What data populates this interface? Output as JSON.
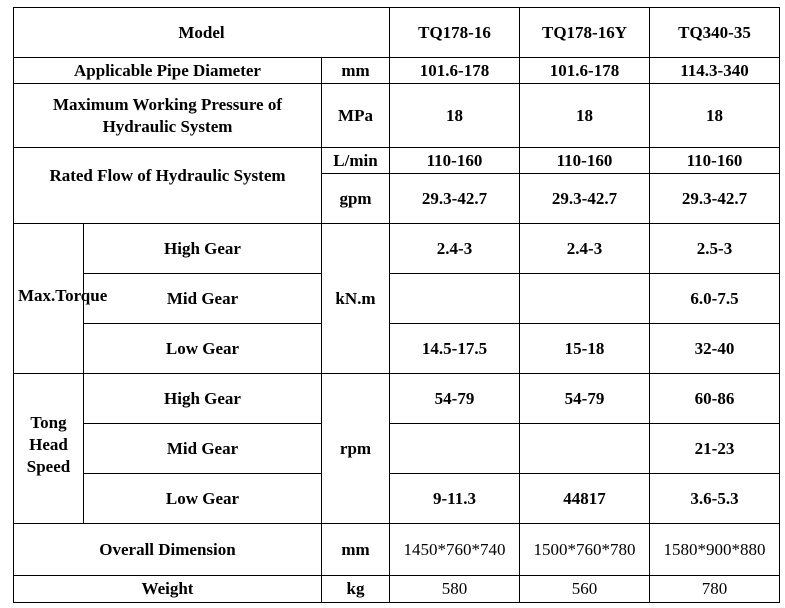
{
  "header": {
    "model": "Model",
    "models": [
      "TQ178-16",
      "TQ178-16Y",
      "TQ340-35"
    ]
  },
  "pipe": {
    "label": "Applicable Pipe Diameter",
    "unit": "mm",
    "values": [
      "101.6-178",
      "101.6-178",
      "114.3-340"
    ]
  },
  "pressure": {
    "label": "Maximum Working Pressure of Hydraulic System",
    "unit": "MPa",
    "values": [
      "18",
      "18",
      "18"
    ]
  },
  "flow": {
    "label": "Rated Flow of Hydraulic System",
    "unit_lmin": "L/min",
    "values_lmin": [
      "110-160",
      "110-160",
      "110-160"
    ],
    "unit_gpm": "gpm",
    "values_gpm": [
      "29.3-42.7",
      "29.3-42.7",
      "29.3-42.7"
    ]
  },
  "torque": {
    "label": "Max.Torque",
    "unit": "kN.m",
    "rows": [
      {
        "gear": "High Gear",
        "values": [
          "2.4-3",
          "2.4-3",
          "2.5-3"
        ]
      },
      {
        "gear": "Mid Gear",
        "values": [
          "",
          "",
          "6.0-7.5"
        ]
      },
      {
        "gear": "Low Gear",
        "values": [
          "14.5-17.5",
          "15-18",
          "32-40"
        ]
      }
    ]
  },
  "speed": {
    "label_lines": [
      "Tong",
      "Head",
      "Speed"
    ],
    "unit": "rpm",
    "rows": [
      {
        "gear": "High Gear",
        "values": [
          "54-79",
          "54-79",
          "60-86"
        ]
      },
      {
        "gear": "Mid Gear",
        "values": [
          "",
          "",
          "21-23"
        ]
      },
      {
        "gear": "Low Gear",
        "values": [
          "9-11.3",
          "44817",
          "3.6-5.3"
        ]
      }
    ]
  },
  "dimension": {
    "label": "Overall Dimension",
    "unit": "mm",
    "values": [
      "1450*760*740",
      "1500*760*780",
      "1580*900*880"
    ]
  },
  "weight": {
    "label": "Weight",
    "unit": "kg",
    "values": [
      "580",
      "560",
      "780"
    ]
  }
}
